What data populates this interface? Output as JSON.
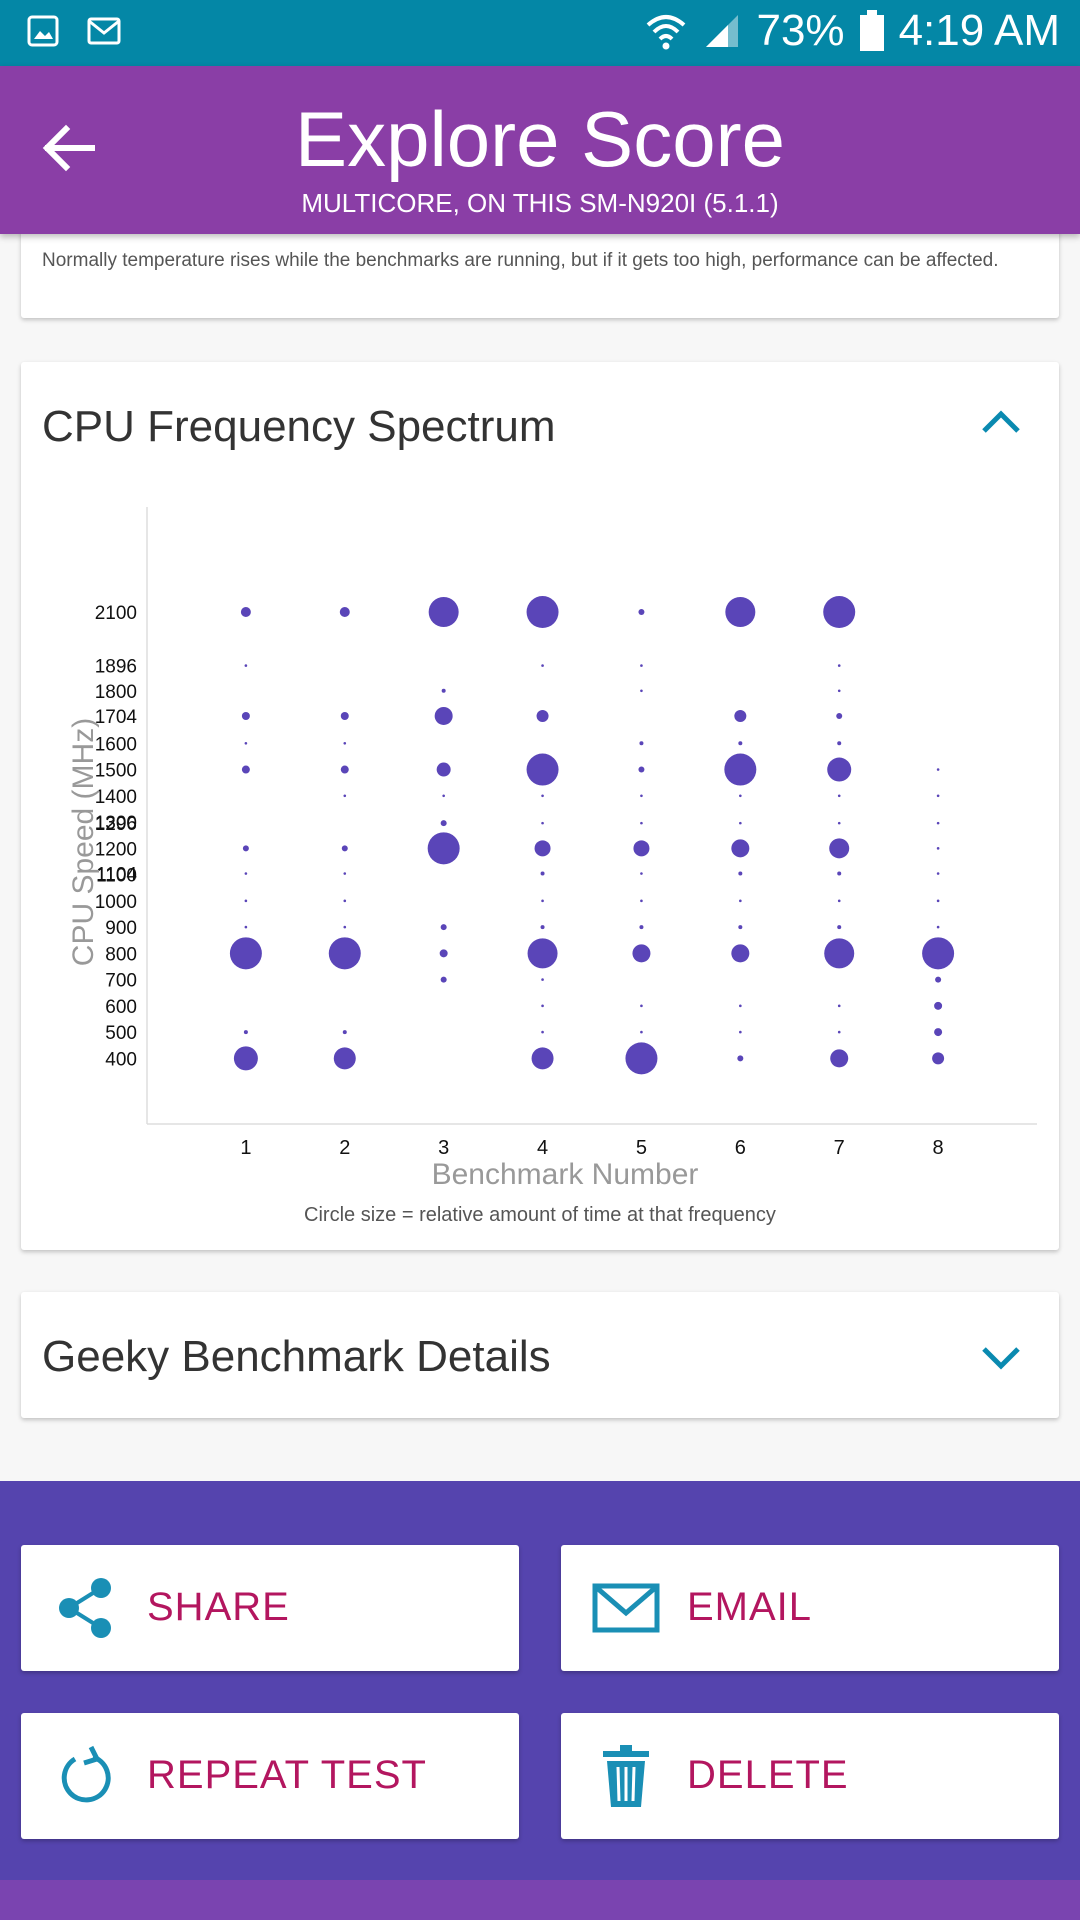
{
  "status_bar": {
    "battery": "73%",
    "time": "4:19 AM"
  },
  "header": {
    "title": "Explore Score",
    "subtitle": "MULTICORE, ON THIS SM-N920I (5.1.1)"
  },
  "temperature_card": {
    "text": "Normally temperature rises while the benchmarks are running, but if it gets too high, performance can be affected."
  },
  "spectrum_card": {
    "title": "CPU Frequency Spectrum",
    "caption": "Circle size = relative amount of time at that frequency"
  },
  "chart_data": {
    "type": "scatter",
    "title": "",
    "xlabel": "Benchmark Number",
    "ylabel": "CPU Speed (MHz)",
    "x_ticks": [
      1,
      2,
      3,
      4,
      5,
      6,
      7,
      8
    ],
    "y_ticks": [
      2100,
      1896,
      1800,
      1704,
      1600,
      1500,
      1400,
      1300,
      1296,
      1200,
      1104,
      1100,
      1000,
      900,
      800,
      700,
      600,
      500,
      400
    ],
    "xlim": [
      0,
      9
    ],
    "ylim": [
      150,
      2500
    ],
    "grid": false,
    "legend": "none",
    "color": "#5a45b8",
    "points": [
      {
        "x": 1,
        "y": 2100,
        "size": 5
      },
      {
        "x": 1,
        "y": 1896,
        "size": 1
      },
      {
        "x": 1,
        "y": 1704,
        "size": 4
      },
      {
        "x": 1,
        "y": 1600,
        "size": 1
      },
      {
        "x": 1,
        "y": 1500,
        "size": 4
      },
      {
        "x": 1,
        "y": 1200,
        "size": 3
      },
      {
        "x": 1,
        "y": 1104,
        "size": 1
      },
      {
        "x": 1,
        "y": 1000,
        "size": 1
      },
      {
        "x": 1,
        "y": 900,
        "size": 1
      },
      {
        "x": 1,
        "y": 800,
        "size": 16
      },
      {
        "x": 1,
        "y": 500,
        "size": 2
      },
      {
        "x": 1,
        "y": 400,
        "size": 12
      },
      {
        "x": 2,
        "y": 2100,
        "size": 5
      },
      {
        "x": 2,
        "y": 1704,
        "size": 4
      },
      {
        "x": 2,
        "y": 1600,
        "size": 1
      },
      {
        "x": 2,
        "y": 1500,
        "size": 4
      },
      {
        "x": 2,
        "y": 1400,
        "size": 1
      },
      {
        "x": 2,
        "y": 1200,
        "size": 3
      },
      {
        "x": 2,
        "y": 1104,
        "size": 1
      },
      {
        "x": 2,
        "y": 1000,
        "size": 1
      },
      {
        "x": 2,
        "y": 900,
        "size": 1
      },
      {
        "x": 2,
        "y": 800,
        "size": 16
      },
      {
        "x": 2,
        "y": 500,
        "size": 2
      },
      {
        "x": 2,
        "y": 400,
        "size": 11
      },
      {
        "x": 3,
        "y": 2100,
        "size": 15
      },
      {
        "x": 3,
        "y": 1800,
        "size": 2
      },
      {
        "x": 3,
        "y": 1704,
        "size": 9
      },
      {
        "x": 3,
        "y": 1500,
        "size": 7
      },
      {
        "x": 3,
        "y": 1400,
        "size": 1
      },
      {
        "x": 3,
        "y": 1296,
        "size": 3
      },
      {
        "x": 3,
        "y": 1200,
        "size": 16
      },
      {
        "x": 3,
        "y": 900,
        "size": 3
      },
      {
        "x": 3,
        "y": 800,
        "size": 4
      },
      {
        "x": 3,
        "y": 700,
        "size": 3
      },
      {
        "x": 4,
        "y": 2100,
        "size": 16
      },
      {
        "x": 4,
        "y": 1896,
        "size": 1
      },
      {
        "x": 4,
        "y": 1704,
        "size": 6
      },
      {
        "x": 4,
        "y": 1500,
        "size": 16
      },
      {
        "x": 4,
        "y": 1400,
        "size": 1
      },
      {
        "x": 4,
        "y": 1296,
        "size": 1
      },
      {
        "x": 4,
        "y": 1200,
        "size": 8
      },
      {
        "x": 4,
        "y": 1104,
        "size": 2
      },
      {
        "x": 4,
        "y": 1000,
        "size": 1
      },
      {
        "x": 4,
        "y": 900,
        "size": 2
      },
      {
        "x": 4,
        "y": 800,
        "size": 15
      },
      {
        "x": 4,
        "y": 700,
        "size": 1
      },
      {
        "x": 4,
        "y": 600,
        "size": 1
      },
      {
        "x": 4,
        "y": 500,
        "size": 1
      },
      {
        "x": 4,
        "y": 400,
        "size": 11
      },
      {
        "x": 5,
        "y": 2100,
        "size": 3
      },
      {
        "x": 5,
        "y": 1896,
        "size": 1
      },
      {
        "x": 5,
        "y": 1800,
        "size": 1
      },
      {
        "x": 5,
        "y": 1600,
        "size": 2
      },
      {
        "x": 5,
        "y": 1500,
        "size": 3
      },
      {
        "x": 5,
        "y": 1400,
        "size": 1
      },
      {
        "x": 5,
        "y": 1296,
        "size": 1
      },
      {
        "x": 5,
        "y": 1200,
        "size": 8
      },
      {
        "x": 5,
        "y": 1104,
        "size": 1
      },
      {
        "x": 5,
        "y": 1000,
        "size": 1
      },
      {
        "x": 5,
        "y": 900,
        "size": 2
      },
      {
        "x": 5,
        "y": 800,
        "size": 9
      },
      {
        "x": 5,
        "y": 600,
        "size": 1
      },
      {
        "x": 5,
        "y": 500,
        "size": 1
      },
      {
        "x": 5,
        "y": 400,
        "size": 16
      },
      {
        "x": 6,
        "y": 2100,
        "size": 15
      },
      {
        "x": 6,
        "y": 1704,
        "size": 6
      },
      {
        "x": 6,
        "y": 1600,
        "size": 2
      },
      {
        "x": 6,
        "y": 1500,
        "size": 16
      },
      {
        "x": 6,
        "y": 1400,
        "size": 1
      },
      {
        "x": 6,
        "y": 1296,
        "size": 1
      },
      {
        "x": 6,
        "y": 1200,
        "size": 9
      },
      {
        "x": 6,
        "y": 1104,
        "size": 2
      },
      {
        "x": 6,
        "y": 1000,
        "size": 1
      },
      {
        "x": 6,
        "y": 900,
        "size": 2
      },
      {
        "x": 6,
        "y": 800,
        "size": 9
      },
      {
        "x": 6,
        "y": 600,
        "size": 1
      },
      {
        "x": 6,
        "y": 500,
        "size": 1
      },
      {
        "x": 6,
        "y": 400,
        "size": 3
      },
      {
        "x": 7,
        "y": 2100,
        "size": 16
      },
      {
        "x": 7,
        "y": 1896,
        "size": 1
      },
      {
        "x": 7,
        "y": 1800,
        "size": 1
      },
      {
        "x": 7,
        "y": 1704,
        "size": 3
      },
      {
        "x": 7,
        "y": 1600,
        "size": 2
      },
      {
        "x": 7,
        "y": 1500,
        "size": 12
      },
      {
        "x": 7,
        "y": 1400,
        "size": 1
      },
      {
        "x": 7,
        "y": 1296,
        "size": 1
      },
      {
        "x": 7,
        "y": 1200,
        "size": 10
      },
      {
        "x": 7,
        "y": 1104,
        "size": 2
      },
      {
        "x": 7,
        "y": 1000,
        "size": 1
      },
      {
        "x": 7,
        "y": 900,
        "size": 2
      },
      {
        "x": 7,
        "y": 800,
        "size": 15
      },
      {
        "x": 7,
        "y": 600,
        "size": 1
      },
      {
        "x": 7,
        "y": 500,
        "size": 1
      },
      {
        "x": 7,
        "y": 400,
        "size": 9
      },
      {
        "x": 8,
        "y": 1500,
        "size": 1
      },
      {
        "x": 8,
        "y": 1400,
        "size": 1
      },
      {
        "x": 8,
        "y": 1296,
        "size": 1
      },
      {
        "x": 8,
        "y": 1200,
        "size": 1
      },
      {
        "x": 8,
        "y": 1104,
        "size": 1
      },
      {
        "x": 8,
        "y": 1000,
        "size": 1
      },
      {
        "x": 8,
        "y": 900,
        "size": 1
      },
      {
        "x": 8,
        "y": 800,
        "size": 16
      },
      {
        "x": 8,
        "y": 700,
        "size": 3
      },
      {
        "x": 8,
        "y": 600,
        "size": 4
      },
      {
        "x": 8,
        "y": 500,
        "size": 4
      },
      {
        "x": 8,
        "y": 400,
        "size": 6
      }
    ]
  },
  "geeky_card": {
    "title": "Geeky Benchmark Details"
  },
  "actions": {
    "share": "SHARE",
    "email": "EMAIL",
    "repeat": "REPEAT TEST",
    "delete": "DELETE"
  },
  "colors": {
    "status_bar": "#0487a6",
    "app_bar": "#8a3ea6",
    "accent": "#0a8ab0",
    "action_text": "#b3165f",
    "bottom_panel": "#5544ae",
    "bubble": "#5a45b8"
  }
}
